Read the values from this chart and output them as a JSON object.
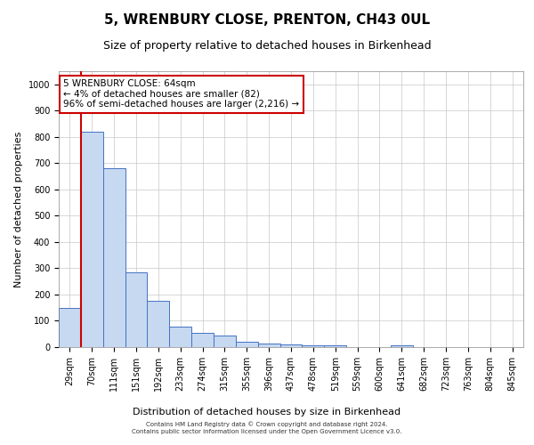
{
  "title": "5, WRENBURY CLOSE, PRENTON, CH43 0UL",
  "subtitle": "Size of property relative to detached houses in Birkenhead",
  "xlabel": "Distribution of detached houses by size in Birkenhead",
  "ylabel": "Number of detached properties",
  "categories": [
    "29sqm",
    "70sqm",
    "111sqm",
    "151sqm",
    "192sqm",
    "233sqm",
    "274sqm",
    "315sqm",
    "355sqm",
    "396sqm",
    "437sqm",
    "478sqm",
    "519sqm",
    "559sqm",
    "600sqm",
    "641sqm",
    "682sqm",
    "723sqm",
    "763sqm",
    "804sqm",
    "845sqm"
  ],
  "values": [
    150,
    820,
    680,
    285,
    175,
    78,
    55,
    45,
    22,
    15,
    10,
    8,
    8,
    0,
    0,
    8,
    0,
    0,
    0,
    0,
    0
  ],
  "bar_color": "#c6d9f0",
  "bar_edge_color": "#4472c4",
  "highlight_line_color": "#cc0000",
  "ylim": [
    0,
    1050
  ],
  "yticks": [
    0,
    100,
    200,
    300,
    400,
    500,
    600,
    700,
    800,
    900,
    1000
  ],
  "annotation_line1": "5 WRENBURY CLOSE: 64sqm",
  "annotation_line2": "← 4% of detached houses are smaller (82)",
  "annotation_line3": "96% of semi-detached houses are larger (2,216) →",
  "annotation_box_color": "#cc0000",
  "annotation_box_facecolor": "white",
  "footer_line1": "Contains HM Land Registry data © Crown copyright and database right 2024.",
  "footer_line2": "Contains public sector information licensed under the Open Government Licence v3.0.",
  "title_fontsize": 11,
  "subtitle_fontsize": 9,
  "tick_fontsize": 7,
  "ylabel_fontsize": 8,
  "xlabel_fontsize": 8,
  "footer_fontsize": 5,
  "annotation_fontsize": 7.5
}
